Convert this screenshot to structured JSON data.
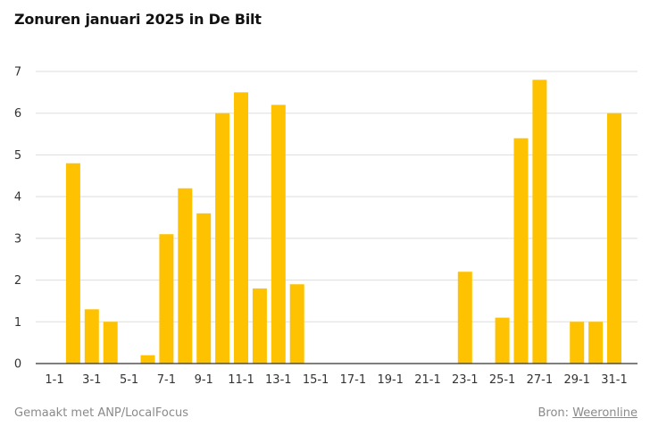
{
  "title": "Zonuren januari 2025 in De Bilt",
  "footer": {
    "credit": "Gemaakt met ANP/LocalFocus",
    "source_label": "Bron:",
    "source_link": "Weeronline"
  },
  "colors": {
    "bar": "#ffc200",
    "grid": "#dddddd",
    "axis": "#333333",
    "text": "#333333"
  },
  "chart_data": {
    "type": "bar",
    "title": "Zonuren januari 2025 in De Bilt",
    "xlabel": "",
    "ylabel": "",
    "ylim": [
      0,
      7
    ],
    "yticks": [
      0,
      1,
      2,
      3,
      4,
      5,
      6,
      7
    ],
    "grid": true,
    "categories": [
      "1-1",
      "2-1",
      "3-1",
      "4-1",
      "5-1",
      "6-1",
      "7-1",
      "8-1",
      "9-1",
      "10-1",
      "11-1",
      "12-1",
      "13-1",
      "14-1",
      "15-1",
      "16-1",
      "17-1",
      "18-1",
      "19-1",
      "20-1",
      "21-1",
      "22-1",
      "23-1",
      "24-1",
      "25-1",
      "26-1",
      "27-1",
      "28-1",
      "29-1",
      "30-1",
      "31-1"
    ],
    "xtick_labels": [
      "1-1",
      "3-1",
      "5-1",
      "7-1",
      "9-1",
      "11-1",
      "13-1",
      "15-1",
      "17-1",
      "19-1",
      "21-1",
      "23-1",
      "25-1",
      "27-1",
      "29-1",
      "31-1"
    ],
    "values": [
      0,
      4.8,
      1.3,
      1.0,
      0,
      0.2,
      3.1,
      4.2,
      3.6,
      6.0,
      6.5,
      1.8,
      6.2,
      1.9,
      0,
      0,
      0,
      0,
      0,
      0,
      0,
      0,
      2.2,
      0,
      1.1,
      5.4,
      6.8,
      0,
      1.0,
      1.0,
      6.0
    ]
  }
}
